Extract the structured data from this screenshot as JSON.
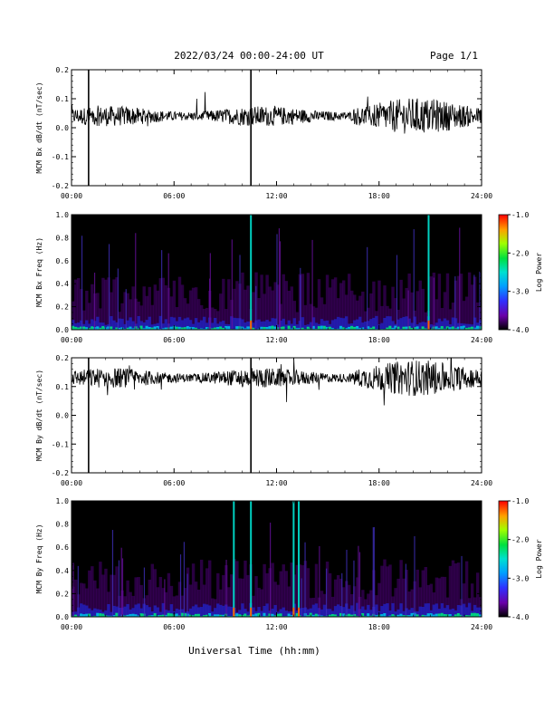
{
  "header": {
    "title": "2022/03/24  00:00-24:00 UT",
    "page": "Page 1/1"
  },
  "footer": {
    "xlabel": "Universal Time (hh:mm)"
  },
  "chart_data": [
    {
      "type": "line",
      "ylabel": "MCM Bx dB/dt (nT/sec)",
      "x_range": [
        0,
        24
      ],
      "ylim": [
        -0.2,
        0.2
      ],
      "y_ticks": [
        "0.2",
        "0.1",
        "0.0",
        "-0.1",
        "-0.2"
      ],
      "x_ticks": [
        "00:00",
        "06:00",
        "12:00",
        "18:00",
        "24:00"
      ],
      "baseline": 0.04,
      "spikes_hours": [
        1.0,
        10.5
      ]
    },
    {
      "type": "heatmap",
      "ylabel": "MCM Bx Freq (Hz)",
      "x_range": [
        0,
        24
      ],
      "ylim": [
        0,
        1.0
      ],
      "y_ticks": [
        "1.0",
        "0.8",
        "0.6",
        "0.4",
        "0.2",
        "0.0"
      ],
      "x_ticks": [
        "00:00",
        "06:00",
        "12:00",
        "18:00",
        "24:00"
      ],
      "colorbar": {
        "label": "Log Power",
        "range": [
          -4.0,
          -1.0
        ],
        "ticks": [
          "-1.0",
          "-2.0",
          "-3.0",
          "-4.0"
        ]
      },
      "bright_lines_hours": [
        10.5,
        20.9
      ]
    },
    {
      "type": "line",
      "ylabel": "MCM By dB/dt (nT/sec)",
      "x_range": [
        0,
        24
      ],
      "ylim": [
        -0.2,
        0.2
      ],
      "y_ticks": [
        "0.2",
        "0.1",
        "0.0",
        "-0.1",
        "-0.2"
      ],
      "x_ticks": [
        "00:00",
        "06:00",
        "12:00",
        "18:00",
        "24:00"
      ],
      "baseline": 0.13,
      "spikes_hours": [
        1.0,
        10.5
      ]
    },
    {
      "type": "heatmap",
      "ylabel": "MCM By Freq (Hz)",
      "x_range": [
        0,
        24
      ],
      "ylim": [
        0,
        1.0
      ],
      "y_ticks": [
        "1.0",
        "0.8",
        "0.6",
        "0.4",
        "0.2",
        "0.0"
      ],
      "x_ticks": [
        "00:00",
        "06:00",
        "12:00",
        "18:00",
        "24:00"
      ],
      "colorbar": {
        "label": "Log Power",
        "range": [
          -4.0,
          -1.0
        ],
        "ticks": [
          "-1.0",
          "-2.0",
          "-3.0",
          "-4.0"
        ]
      },
      "bright_lines_hours": [
        9.5,
        10.5,
        13.0,
        13.3
      ]
    }
  ]
}
